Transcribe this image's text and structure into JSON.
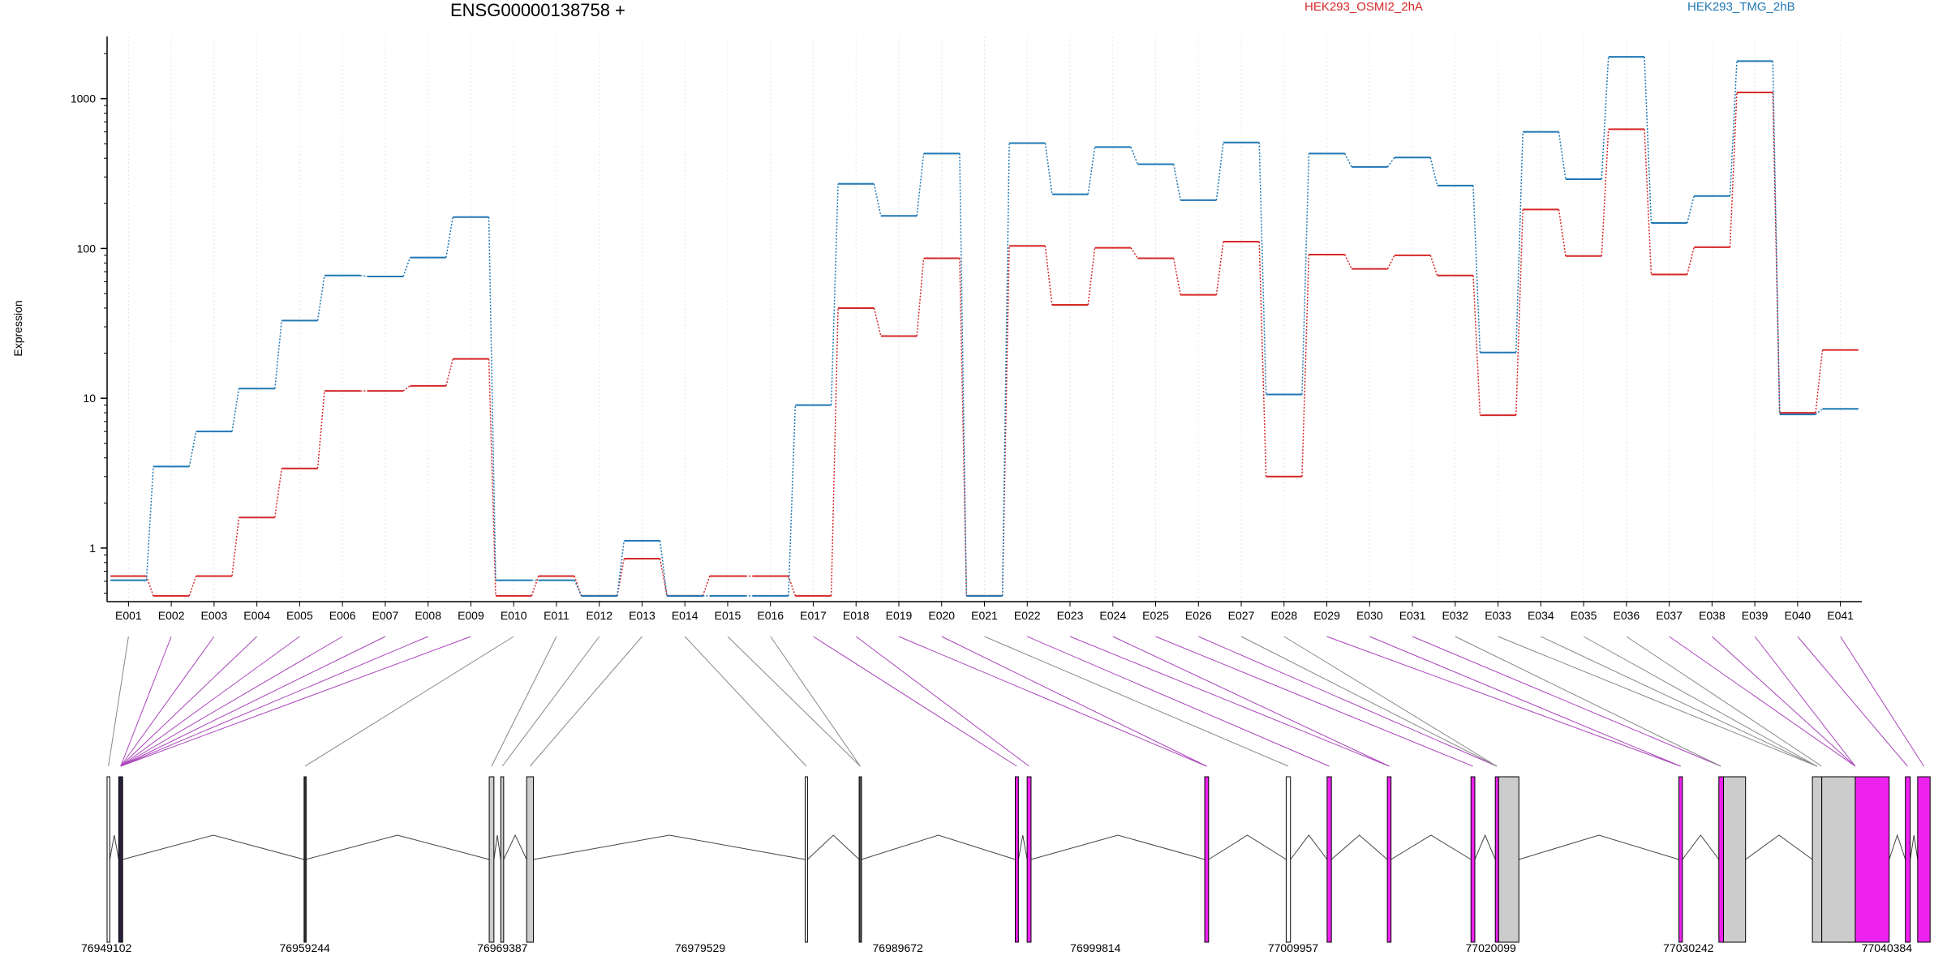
{
  "chart_data": {
    "type": "line",
    "title": "ENSG00000138758 +",
    "xlabel": "",
    "ylabel": "Expression",
    "y_scale": "log",
    "ylim": [
      0.45,
      2600
    ],
    "y_ticks": [
      1,
      10,
      100,
      1000
    ],
    "grid": "vertical dotted lines at exon bins",
    "legend_position": "top-right",
    "categories": [
      "E001",
      "E002",
      "E003",
      "E004",
      "E005",
      "E006",
      "E007",
      "E008",
      "E009",
      "E010",
      "E011",
      "E012",
      "E013",
      "E014",
      "E015",
      "E016",
      "E017",
      "E018",
      "E019",
      "E020",
      "E021",
      "E022",
      "E023",
      "E024",
      "E025",
      "E026",
      "E027",
      "E028",
      "E029",
      "E030",
      "E031",
      "E032",
      "E033",
      "E034",
      "E035",
      "E036",
      "E037",
      "E038",
      "E039",
      "E040",
      "E041"
    ],
    "series": [
      {
        "name": "HEK293_OSMI2_2hA",
        "color": "#d62728",
        "values": [
          0.65,
          0.48,
          0.65,
          1.6,
          3.4,
          11.2,
          11.2,
          12.1,
          18.3,
          0.48,
          0.65,
          0.48,
          0.85,
          0.48,
          0.65,
          0.65,
          0.48,
          40,
          26,
          86,
          0.48,
          104,
          42,
          101,
          86,
          49,
          111,
          3.0,
          91,
          73,
          90,
          66,
          7.7,
          182,
          89,
          625,
          67,
          102,
          1100,
          8.0,
          21
        ]
      },
      {
        "name": "HEK293_TMG_2hB",
        "color": "#1f77b4",
        "values": [
          0.61,
          3.5,
          6.0,
          11.6,
          33,
          66,
          65,
          87,
          162,
          0.61,
          0.61,
          0.48,
          1.12,
          0.48,
          0.48,
          0.48,
          9.0,
          270,
          165,
          430,
          0.48,
          505,
          230,
          475,
          365,
          210,
          510,
          10.6,
          430,
          350,
          405,
          263,
          20.2,
          600,
          290,
          1900,
          148,
          224,
          1780,
          7.8,
          8.5
        ]
      }
    ],
    "gene_model": {
      "coordinate_ticks": [
        "76949102",
        "76959244",
        "76969387",
        "76979529",
        "76989672",
        "76999814",
        "77009957",
        "77020099",
        "77030242",
        "77040384"
      ],
      "genomic_range": [
        76949102,
        77040384
      ],
      "exons": [
        {
          "start": 76949102,
          "end": 76949240,
          "color": "#ffffff"
        },
        {
          "start": 76949700,
          "end": 76949900,
          "color": "#2a1f3d"
        },
        {
          "start": 76959210,
          "end": 76959290,
          "color": "#333333"
        },
        {
          "start": 76968710,
          "end": 76968950,
          "color": "#cccccc"
        },
        {
          "start": 76969300,
          "end": 76969450,
          "color": "#cccccc"
        },
        {
          "start": 76970630,
          "end": 76970980,
          "color": "#cccccc"
        },
        {
          "start": 76984920,
          "end": 76985040,
          "color": "#ffffff"
        },
        {
          "start": 76987690,
          "end": 76987810,
          "color": "#555555"
        },
        {
          "start": 76995700,
          "end": 76995860,
          "color": "#ee22ee"
        },
        {
          "start": 76996310,
          "end": 76996510,
          "color": "#ee22ee"
        },
        {
          "start": 77005420,
          "end": 77005620,
          "color": "#ee22ee"
        },
        {
          "start": 77009600,
          "end": 77009820,
          "color": "#ffffff"
        },
        {
          "start": 77011700,
          "end": 77011920,
          "color": "#ee22ee"
        },
        {
          "start": 77014790,
          "end": 77014980,
          "color": "#ee22ee"
        },
        {
          "start": 77019080,
          "end": 77019280,
          "color": "#ee22ee"
        },
        {
          "start": 77020330,
          "end": 77020500,
          "color": "#ee22ee"
        },
        {
          "start": 77020500,
          "end": 77021540,
          "color": "#cccccc"
        },
        {
          "start": 77029750,
          "end": 77029930,
          "color": "#ee22ee"
        },
        {
          "start": 77031800,
          "end": 77032040,
          "color": "#ee22ee"
        },
        {
          "start": 77032040,
          "end": 77033170,
          "color": "#cccccc"
        },
        {
          "start": 77036600,
          "end": 77037080,
          "color": "#cccccc"
        },
        {
          "start": 77037080,
          "end": 77038800,
          "color": "#cccccc"
        },
        {
          "start": 77038800,
          "end": 77040540,
          "color": "#ee22ee"
        },
        {
          "start": 77041370,
          "end": 77041620,
          "color": "#ee22ee"
        },
        {
          "start": 77042000,
          "end": 77042640,
          "color": "#ee22ee"
        }
      ],
      "exon_bin_map": [
        {
          "bin": "E001",
          "pos": 76949170,
          "color": "#888888"
        },
        {
          "bin": "E002",
          "pos": 76949800,
          "color": "#aa44bb"
        },
        {
          "bin": "E003",
          "pos": 76949800,
          "color": "#aa44bb"
        },
        {
          "bin": "E004",
          "pos": 76949800,
          "color": "#aa44bb"
        },
        {
          "bin": "E005",
          "pos": 76949800,
          "color": "#aa44bb"
        },
        {
          "bin": "E006",
          "pos": 76949800,
          "color": "#aa44bb"
        },
        {
          "bin": "E007",
          "pos": 76949800,
          "color": "#aa44bb"
        },
        {
          "bin": "E008",
          "pos": 76949800,
          "color": "#aa44bb"
        },
        {
          "bin": "E009",
          "pos": 76949800,
          "color": "#aa44bb"
        },
        {
          "bin": "E010",
          "pos": 76959250,
          "color": "#888888"
        },
        {
          "bin": "E011",
          "pos": 76968830,
          "color": "#888888"
        },
        {
          "bin": "E012",
          "pos": 76969380,
          "color": "#888888"
        },
        {
          "bin": "E013",
          "pos": 76970800,
          "color": "#888888"
        },
        {
          "bin": "E014",
          "pos": 76984980,
          "color": "#888888"
        },
        {
          "bin": "E015",
          "pos": 76987750,
          "color": "#888888"
        },
        {
          "bin": "E016",
          "pos": 76987750,
          "color": "#888888"
        },
        {
          "bin": "E017",
          "pos": 76995780,
          "color": "#aa44bb"
        },
        {
          "bin": "E018",
          "pos": 76996410,
          "color": "#aa44bb"
        },
        {
          "bin": "E019",
          "pos": 77005520,
          "color": "#aa44bb"
        },
        {
          "bin": "E020",
          "pos": 77005520,
          "color": "#aa44bb"
        },
        {
          "bin": "E021",
          "pos": 77009710,
          "color": "#888888"
        },
        {
          "bin": "E022",
          "pos": 77011810,
          "color": "#aa44bb"
        },
        {
          "bin": "E023",
          "pos": 77014890,
          "color": "#aa44bb"
        },
        {
          "bin": "E024",
          "pos": 77014890,
          "color": "#aa44bb"
        },
        {
          "bin": "E025",
          "pos": 77019180,
          "color": "#aa44bb"
        },
        {
          "bin": "E026",
          "pos": 77020410,
          "color": "#aa44bb"
        },
        {
          "bin": "E027",
          "pos": 77020410,
          "color": "#888888"
        },
        {
          "bin": "E028",
          "pos": 77020410,
          "color": "#888888"
        },
        {
          "bin": "E029",
          "pos": 77029840,
          "color": "#aa44bb"
        },
        {
          "bin": "E030",
          "pos": 77029840,
          "color": "#aa44bb"
        },
        {
          "bin": "E031",
          "pos": 77031900,
          "color": "#aa44bb"
        },
        {
          "bin": "E032",
          "pos": 77031900,
          "color": "#888888"
        },
        {
          "bin": "E033",
          "pos": 77036840,
          "color": "#888888"
        },
        {
          "bin": "E034",
          "pos": 77036840,
          "color": "#888888"
        },
        {
          "bin": "E035",
          "pos": 77036840,
          "color": "#888888"
        },
        {
          "bin": "E036",
          "pos": 77037080,
          "color": "#888888"
        },
        {
          "bin": "E037",
          "pos": 77038800,
          "color": "#aa44bb"
        },
        {
          "bin": "E038",
          "pos": 77038800,
          "color": "#aa44bb"
        },
        {
          "bin": "E039",
          "pos": 77038800,
          "color": "#aa44bb"
        },
        {
          "bin": "E040",
          "pos": 77041480,
          "color": "#aa44bb"
        },
        {
          "bin": "E041",
          "pos": 77042320,
          "color": "#aa44bb"
        }
      ]
    }
  }
}
